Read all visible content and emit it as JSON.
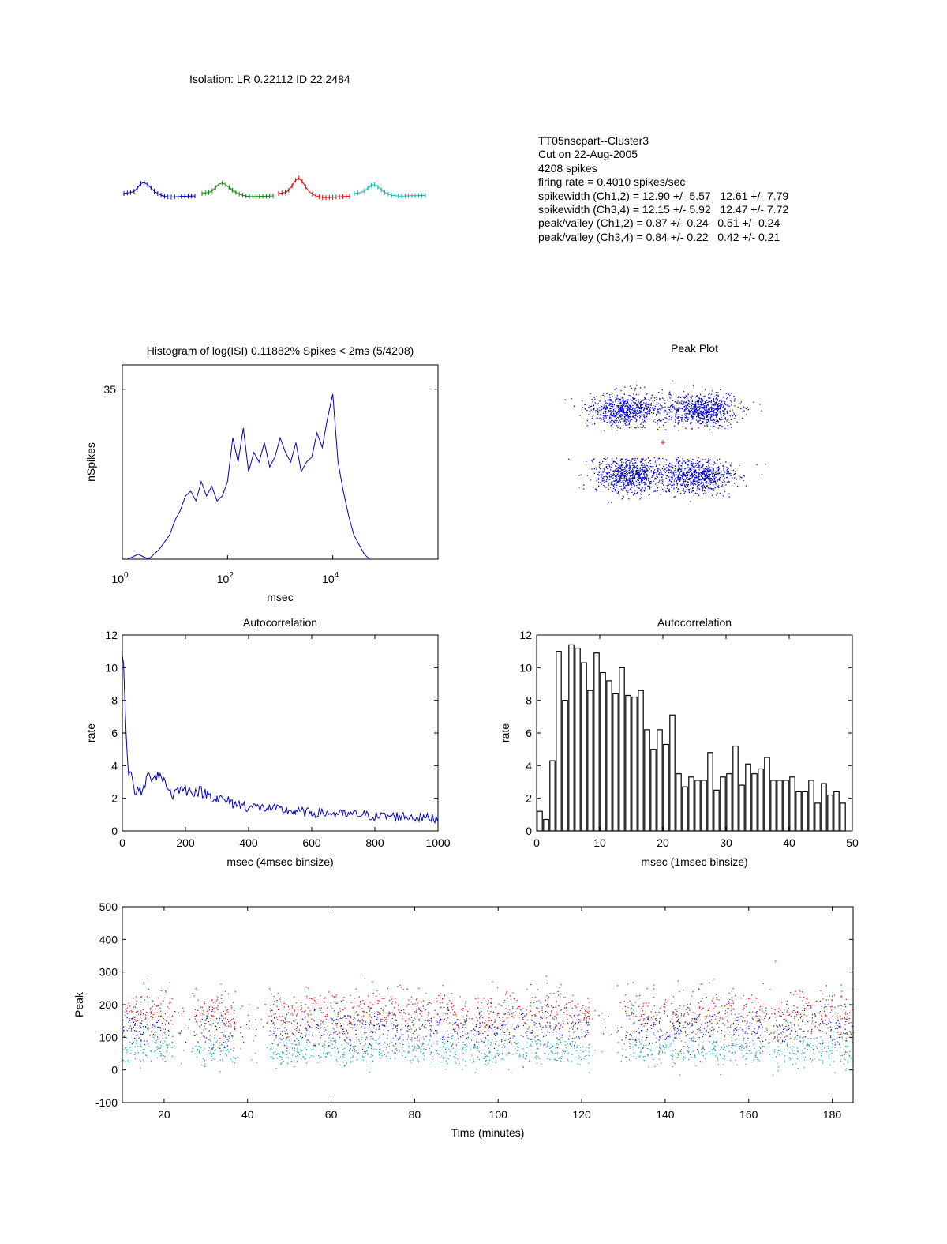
{
  "isolation_text": "Isolation: LR 0.22112 ID 22.2484",
  "cluster_info": [
    "TT05nscpart--Cluster3",
    "Cut on 22-Aug-2005",
    "4208 spikes",
    "firing rate = 0.4010 spikes/sec",
    "spikewidth (Ch1,2) = 12.90 +/- 5.57   12.61 +/- 7.79",
    "spikewidth (Ch3,4) = 12.15 +/- 5.92   12.47 +/- 7.72",
    "peak/valley (Ch1,2) = 0.87 +/- 0.24   0.51 +/- 0.24",
    "peak/valley (Ch3,4) = 0.84 +/- 0.22   0.42 +/- 0.21"
  ],
  "colors": {
    "blue": "#0000cc",
    "green": "#008800",
    "red": "#dd0000",
    "cyan": "#00bbbb",
    "teal": "#00a090",
    "black": "#000000"
  },
  "chart_data": [
    {
      "id": "waveforms",
      "type": "line",
      "title": "",
      "series": [
        {
          "color": "blue",
          "values": [
            0.0,
            0.05,
            0.1,
            0.2,
            0.5,
            0.9,
            1.0,
            0.8,
            0.5,
            0.2,
            0.0,
            -0.15,
            -0.25,
            -0.3,
            -0.32,
            -0.3,
            -0.28,
            -0.26,
            -0.25,
            -0.24,
            -0.23,
            -0.22
          ]
        },
        {
          "color": "green",
          "values": [
            0.0,
            0.05,
            0.1,
            0.25,
            0.55,
            0.85,
            0.95,
            0.8,
            0.55,
            0.3,
            0.1,
            -0.05,
            -0.15,
            -0.22,
            -0.27,
            -0.28,
            -0.27,
            -0.26,
            -0.25,
            -0.24,
            -0.23,
            -0.22
          ]
        },
        {
          "color": "red",
          "values": [
            0.0,
            0.05,
            0.1,
            0.3,
            0.7,
            1.2,
            1.4,
            1.1,
            0.6,
            0.2,
            -0.05,
            -0.2,
            -0.3,
            -0.35,
            -0.37,
            -0.36,
            -0.34,
            -0.32,
            -0.3,
            -0.28,
            -0.26,
            -0.25
          ]
        },
        {
          "color": "cyan",
          "values": [
            0.0,
            0.05,
            0.1,
            0.25,
            0.5,
            0.75,
            0.8,
            0.6,
            0.35,
            0.1,
            -0.05,
            -0.15,
            -0.2,
            -0.22,
            -0.23,
            -0.22,
            -0.21,
            -0.2,
            -0.2,
            -0.19,
            -0.18,
            -0.18
          ]
        }
      ]
    },
    {
      "id": "isi",
      "type": "line",
      "title": "Histogram of log(ISI) 0.11882% Spikes < 2ms (5/4208)",
      "xlabel": "msec",
      "ylabel": "nSpikes",
      "xscale": "log",
      "xlim": [
        1,
        1000000
      ],
      "ylim": [
        0,
        40
      ],
      "xtick_base": "10",
      "xtick_exponents": [
        "0",
        "2",
        "4"
      ],
      "yticks": [
        "35"
      ],
      "color": "blue",
      "x_log10": [
        0.1,
        0.3,
        0.5,
        0.7,
        0.9,
        1.0,
        1.1,
        1.2,
        1.3,
        1.4,
        1.5,
        1.6,
        1.7,
        1.8,
        1.9,
        2.0,
        2.1,
        2.2,
        2.3,
        2.4,
        2.5,
        2.6,
        2.7,
        2.8,
        2.9,
        3.0,
        3.1,
        3.2,
        3.3,
        3.4,
        3.5,
        3.6,
        3.7,
        3.8,
        3.9,
        4.0,
        4.1,
        4.2,
        4.3,
        4.4,
        4.5,
        4.6,
        4.7
      ],
      "values": [
        0,
        1,
        0,
        2,
        5,
        8,
        10,
        13,
        14,
        12,
        16,
        13,
        15,
        12,
        13,
        16,
        25,
        20,
        27,
        18,
        22,
        20,
        24,
        19,
        21,
        25,
        22,
        20,
        24,
        18,
        20,
        21,
        26,
        23,
        29,
        34,
        20,
        14,
        9,
        5,
        3,
        1,
        0
      ]
    },
    {
      "id": "peak_plot",
      "type": "scatter",
      "title": "Peak Plot",
      "color": "blue",
      "center_color": "red",
      "clusters": [
        {
          "cx": -0.45,
          "cy": 0.55,
          "sx": 0.22,
          "sy": 0.14,
          "n": 700
        },
        {
          "cx": 0.45,
          "cy": 0.55,
          "sx": 0.22,
          "sy": 0.14,
          "n": 700
        },
        {
          "cx": -0.4,
          "cy": -0.55,
          "sx": 0.22,
          "sy": 0.15,
          "n": 750
        },
        {
          "cx": 0.4,
          "cy": -0.55,
          "sx": 0.22,
          "sy": 0.15,
          "n": 750
        }
      ]
    },
    {
      "id": "autocorr_4ms",
      "type": "line",
      "title": "Autocorrelation",
      "xlabel": "msec (4msec binsize)",
      "ylabel": "rate",
      "xlim": [
        0,
        1000
      ],
      "ylim": [
        0,
        12
      ],
      "xticks": [
        "0",
        "200",
        "400",
        "600",
        "800",
        "1000"
      ],
      "yticks": [
        "0",
        "2",
        "4",
        "6",
        "8",
        "10",
        "12"
      ],
      "color": "blue",
      "x": [
        0,
        4,
        8,
        12,
        16,
        20,
        24,
        28,
        40,
        60,
        80,
        100,
        120,
        140,
        160,
        180,
        200,
        250,
        300,
        350,
        400,
        450,
        500,
        550,
        600,
        650,
        700,
        750,
        800,
        850,
        900,
        950,
        1000
      ],
      "values": [
        10.8,
        10.2,
        8,
        6,
        4.5,
        3.4,
        3.7,
        3.3,
        2.5,
        2.3,
        3.3,
        3.4,
        3.5,
        2.8,
        2.2,
        2.6,
        2.5,
        2.4,
        2.0,
        1.7,
        1.5,
        1.4,
        1.3,
        1.2,
        1.1,
        1.1,
        1.0,
        1.0,
        0.9,
        0.9,
        0.9,
        0.8,
        0.8
      ]
    },
    {
      "id": "autocorr_1ms",
      "type": "bar",
      "title": "Autocorrelation",
      "xlabel": "msec (1msec binsize)",
      "ylabel": "rate",
      "xlim": [
        0,
        50
      ],
      "ylim": [
        0,
        12
      ],
      "xticks": [
        "0",
        "10",
        "20",
        "30",
        "40",
        "50"
      ],
      "yticks": [
        "0",
        "2",
        "4",
        "6",
        "8",
        "10",
        "12"
      ],
      "categories": [
        1,
        2,
        3,
        4,
        5,
        6,
        7,
        8,
        9,
        10,
        11,
        12,
        13,
        14,
        15,
        16,
        17,
        18,
        19,
        20,
        21,
        22,
        23,
        24,
        25,
        26,
        27,
        28,
        29,
        30,
        31,
        32,
        33,
        34,
        35,
        36,
        37,
        38,
        39,
        40,
        41,
        42,
        43,
        44,
        45,
        46,
        47,
        48,
        49,
        50
      ],
      "values": [
        1.2,
        0.7,
        4.3,
        11,
        8,
        11.4,
        11.2,
        10.3,
        8.6,
        10.9,
        9.7,
        9.2,
        8.4,
        10,
        8.3,
        8.2,
        8.6,
        6.2,
        5,
        6.2,
        5.3,
        7.1,
        3.5,
        2.7,
        3.3,
        3.1,
        3.1,
        4.8,
        2.5,
        3.3,
        3.5,
        5.2,
        2.8,
        4.1,
        3.5,
        3.8,
        4.5,
        3.1,
        3.1,
        3.1,
        3.3,
        2.4,
        2.4,
        3.1,
        1.7,
        2.9,
        2.2,
        2.4,
        1.7,
        0
      ]
    },
    {
      "id": "peak_time",
      "type": "scatter",
      "xlabel": "Time (minutes)",
      "ylabel": "Peak",
      "xlim": [
        10,
        185
      ],
      "ylim": [
        -100,
        500
      ],
      "xticks": [
        "20",
        "40",
        "60",
        "80",
        "100",
        "120",
        "140",
        "160",
        "180"
      ],
      "yticks": [
        "-100",
        "0",
        "100",
        "200",
        "300",
        "400",
        "500"
      ],
      "series": [
        {
          "color": "red",
          "center": 180,
          "spread": 60
        },
        {
          "color": "blue",
          "center": 130,
          "spread": 55
        },
        {
          "color": "teal",
          "center": 60,
          "spread": 40
        }
      ],
      "active_periods": [
        [
          10,
          22
        ],
        [
          27,
          37
        ],
        [
          45,
          122
        ],
        [
          130,
          185
        ]
      ]
    }
  ]
}
